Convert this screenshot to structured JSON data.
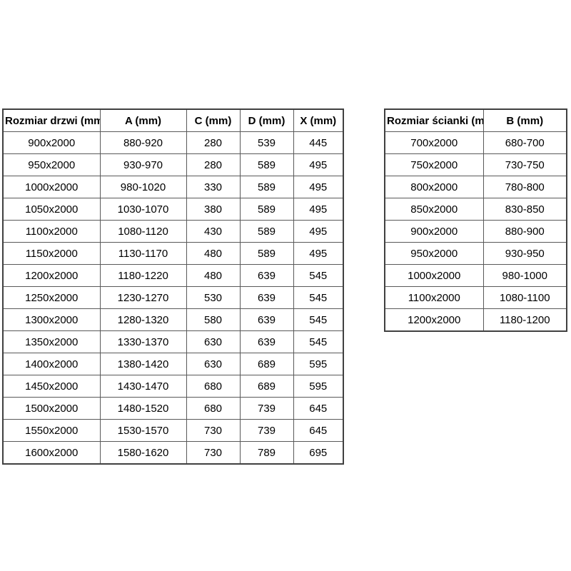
{
  "colors": {
    "background": "#ffffff",
    "inner_border": "#595959",
    "outer_border": "#404040",
    "text": "#000000"
  },
  "door_table": {
    "headers": [
      "Rozmiar drzwi (mm)",
      "A (mm)",
      "C (mm)",
      "D (mm)",
      "X (mm)"
    ],
    "rows": [
      [
        "900x2000",
        "880-920",
        "280",
        "539",
        "445"
      ],
      [
        "950x2000",
        "930-970",
        "280",
        "589",
        "495"
      ],
      [
        "1000x2000",
        "980-1020",
        "330",
        "589",
        "495"
      ],
      [
        "1050x2000",
        "1030-1070",
        "380",
        "589",
        "495"
      ],
      [
        "1100x2000",
        "1080-1120",
        "430",
        "589",
        "495"
      ],
      [
        "1150x2000",
        "1130-1170",
        "480",
        "589",
        "495"
      ],
      [
        "1200x2000",
        "1180-1220",
        "480",
        "639",
        "545"
      ],
      [
        "1250x2000",
        "1230-1270",
        "530",
        "639",
        "545"
      ],
      [
        "1300x2000",
        "1280-1320",
        "580",
        "639",
        "545"
      ],
      [
        "1350x2000",
        "1330-1370",
        "630",
        "639",
        "545"
      ],
      [
        "1400x2000",
        "1380-1420",
        "630",
        "689",
        "595"
      ],
      [
        "1450x2000",
        "1430-1470",
        "680",
        "689",
        "595"
      ],
      [
        "1500x2000",
        "1480-1520",
        "680",
        "739",
        "645"
      ],
      [
        "1550x2000",
        "1530-1570",
        "730",
        "739",
        "645"
      ],
      [
        "1600x2000",
        "1580-1620",
        "730",
        "789",
        "695"
      ]
    ]
  },
  "wall_table": {
    "headers": [
      "Rozmiar ścianki (mm)",
      "B (mm)"
    ],
    "rows": [
      [
        "700x2000",
        "680-700"
      ],
      [
        "750x2000",
        "730-750"
      ],
      [
        "800x2000",
        "780-800"
      ],
      [
        "850x2000",
        "830-850"
      ],
      [
        "900x2000",
        "880-900"
      ],
      [
        "950x2000",
        "930-950"
      ],
      [
        "1000x2000",
        "980-1000"
      ],
      [
        "1100x2000",
        "1080-1100"
      ],
      [
        "1200x2000",
        "1180-1200"
      ]
    ]
  }
}
